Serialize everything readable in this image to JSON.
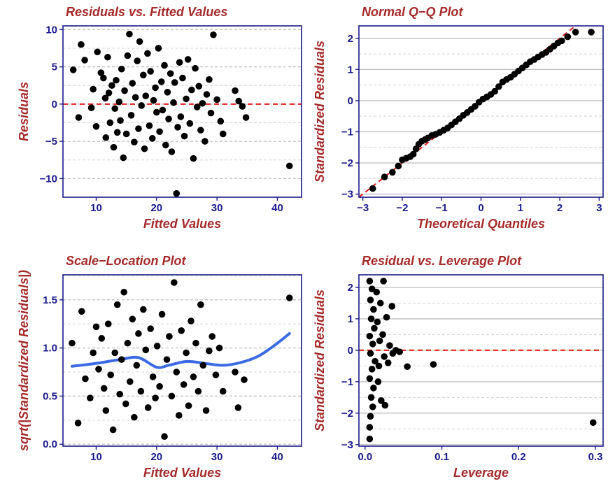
{
  "colors": {
    "title": "#a52a2a",
    "tick_text": "#1a1a8c",
    "frame": "#1a1a8c",
    "point": "#000000",
    "refline": "#e41a1c",
    "smooth": "#3b6be3",
    "grid_major": "#bebebe",
    "grid_minor": "#d3d3d3"
  },
  "chart_data": [
    {
      "type": "scatter",
      "title": "Residuals vs. Fitted Values",
      "xlabel": "Fitted Values",
      "ylabel": "Residuals",
      "xlim": [
        4.5,
        44
      ],
      "ylim": [
        -12.5,
        10.5
      ],
      "xticks": [
        10,
        20,
        30,
        40
      ],
      "yticks": [
        -10,
        -5,
        0,
        5,
        10
      ],
      "grid": "horizontal dashed",
      "reference_line": {
        "y": 0,
        "style": "dashed",
        "color": "red"
      },
      "points": [
        [
          6.2,
          4.6
        ],
        [
          7.1,
          -1.8
        ],
        [
          7.5,
          8.0
        ],
        [
          8.1,
          5.9
        ],
        [
          9.2,
          -0.5
        ],
        [
          9.5,
          2.0
        ],
        [
          10.0,
          -3.0
        ],
        [
          10.2,
          7.0
        ],
        [
          10.8,
          4.2
        ],
        [
          11.2,
          3.5
        ],
        [
          11.5,
          0.8
        ],
        [
          11.6,
          -4.5
        ],
        [
          11.9,
          6.3
        ],
        [
          12.1,
          1.5
        ],
        [
          12.3,
          -2.5
        ],
        [
          12.6,
          2.5
        ],
        [
          12.9,
          -5.8
        ],
        [
          13.1,
          -0.6
        ],
        [
          13.3,
          3.2
        ],
        [
          13.5,
          -3.8
        ],
        [
          13.8,
          0.3
        ],
        [
          14.0,
          -2.2
        ],
        [
          14.2,
          4.7
        ],
        [
          14.5,
          -7.2
        ],
        [
          14.7,
          1.8
        ],
        [
          15.0,
          -4.0
        ],
        [
          15.2,
          6.5
        ],
        [
          15.5,
          9.4
        ],
        [
          15.8,
          -1.5
        ],
        [
          16.0,
          2.8
        ],
        [
          16.3,
          -5.1
        ],
        [
          16.5,
          0.9
        ],
        [
          16.8,
          5.8
        ],
        [
          17.0,
          -3.3
        ],
        [
          17.2,
          8.4
        ],
        [
          17.5,
          -0.2
        ],
        [
          17.8,
          3.9
        ],
        [
          18.0,
          -6.0
        ],
        [
          18.2,
          1.1
        ],
        [
          18.5,
          6.8
        ],
        [
          18.8,
          -2.9
        ],
        [
          19.0,
          4.4
        ],
        [
          19.3,
          -4.6
        ],
        [
          19.5,
          0.5
        ],
        [
          19.8,
          2.2
        ],
        [
          20.0,
          -1.1
        ],
        [
          20.3,
          7.5
        ],
        [
          20.5,
          -3.7
        ],
        [
          20.8,
          3.0
        ],
        [
          21.0,
          -0.8
        ],
        [
          21.3,
          5.2
        ],
        [
          21.5,
          -5.5
        ],
        [
          21.8,
          1.6
        ],
        [
          22.0,
          -2.0
        ],
        [
          22.3,
          4.1
        ],
        [
          22.5,
          -6.4
        ],
        [
          22.8,
          0.2
        ],
        [
          23.0,
          2.9
        ],
        [
          23.3,
          -12.0
        ],
        [
          23.5,
          -3.1
        ],
        [
          23.8,
          5.6
        ],
        [
          24.0,
          -1.7
        ],
        [
          24.3,
          3.5
        ],
        [
          24.6,
          -4.3
        ],
        [
          24.9,
          0.7
        ],
        [
          25.2,
          6.0
        ],
        [
          25.5,
          -2.6
        ],
        [
          25.8,
          1.9
        ],
        [
          26.1,
          -7.3
        ],
        [
          26.4,
          4.8
        ],
        [
          26.7,
          -0.4
        ],
        [
          27.0,
          2.4
        ],
        [
          27.3,
          -3.5
        ],
        [
          27.6,
          0.1
        ],
        [
          28.0,
          -5.0
        ],
        [
          28.3,
          1.3
        ],
        [
          28.7,
          3.3
        ],
        [
          29.0,
          -1.2
        ],
        [
          29.4,
          9.3
        ],
        [
          30.0,
          0.6
        ],
        [
          30.6,
          -2.3
        ],
        [
          31.0,
          -4.0
        ],
        [
          33.0,
          1.8
        ],
        [
          33.6,
          0.4
        ],
        [
          34.2,
          -0.3
        ],
        [
          34.8,
          -1.8
        ],
        [
          42.0,
          -8.3
        ]
      ]
    },
    {
      "type": "scatter",
      "title": "Normal Q−Q Plot",
      "xlabel": "Theoretical Quantiles",
      "ylabel": "Standardized Residuals",
      "xlim": [
        -3.1,
        3.1
      ],
      "ylim": [
        -3.1,
        2.4
      ],
      "xticks": [
        -3,
        -2,
        -1,
        0,
        1,
        2,
        3
      ],
      "xtick_labels": [
        "−3",
        "−2",
        "−1",
        "0",
        "1",
        "2",
        "3"
      ],
      "yticks": [
        -3,
        -2,
        -1,
        0,
        1,
        2
      ],
      "ytick_labels": [
        "−3",
        "−2",
        "−1",
        "0",
        "1",
        "2"
      ],
      "grid": "horizontal",
      "reference_line": {
        "slope": 1,
        "intercept": 0,
        "style": "dashed",
        "color": "red"
      },
      "points": [
        [
          -2.75,
          -2.82
        ],
        [
          -2.45,
          -2.45
        ],
        [
          -2.25,
          -2.3
        ],
        [
          -2.1,
          -2.1
        ],
        [
          -2.0,
          -1.9
        ],
        [
          -1.9,
          -1.85
        ],
        [
          -1.8,
          -1.8
        ],
        [
          -1.72,
          -1.72
        ],
        [
          -1.65,
          -1.55
        ],
        [
          -1.58,
          -1.4
        ],
        [
          -1.5,
          -1.3
        ],
        [
          -1.42,
          -1.25
        ],
        [
          -1.35,
          -1.2
        ],
        [
          -1.25,
          -1.12
        ],
        [
          -1.15,
          -1.08
        ],
        [
          -1.05,
          -1.02
        ],
        [
          -0.95,
          -0.95
        ],
        [
          -0.85,
          -0.88
        ],
        [
          -0.75,
          -0.78
        ],
        [
          -0.65,
          -0.68
        ],
        [
          -0.55,
          -0.58
        ],
        [
          -0.45,
          -0.47
        ],
        [
          -0.35,
          -0.38
        ],
        [
          -0.25,
          -0.28
        ],
        [
          -0.15,
          -0.18
        ],
        [
          -0.05,
          -0.05
        ],
        [
          0.05,
          0.05
        ],
        [
          0.15,
          0.12
        ],
        [
          0.25,
          0.2
        ],
        [
          0.35,
          0.3
        ],
        [
          0.45,
          0.45
        ],
        [
          0.55,
          0.6
        ],
        [
          0.65,
          0.68
        ],
        [
          0.75,
          0.75
        ],
        [
          0.85,
          0.85
        ],
        [
          0.95,
          0.95
        ],
        [
          1.05,
          1.05
        ],
        [
          1.15,
          1.15
        ],
        [
          1.25,
          1.25
        ],
        [
          1.35,
          1.32
        ],
        [
          1.45,
          1.4
        ],
        [
          1.55,
          1.48
        ],
        [
          1.65,
          1.55
        ],
        [
          1.75,
          1.65
        ],
        [
          1.85,
          1.75
        ],
        [
          1.95,
          1.85
        ],
        [
          2.05,
          1.92
        ],
        [
          2.2,
          2.05
        ],
        [
          2.4,
          2.2
        ],
        [
          2.8,
          2.2
        ]
      ]
    },
    {
      "type": "scatter",
      "title": "Scale−Location Plot",
      "xlabel": "Fitted Values",
      "ylabel": "sqrt(|Standardized Residuals|)",
      "xlim": [
        4.5,
        44
      ],
      "ylim": [
        -0.02,
        1.76
      ],
      "xticks": [
        10,
        20,
        30,
        40
      ],
      "yticks": [
        0.0,
        0.5,
        1.0,
        1.5
      ],
      "ytick_labels": [
        "0.0",
        "0.5",
        "1.0",
        "1.5"
      ],
      "grid": "horizontal dashed",
      "smooth_curve": [
        [
          6,
          0.81
        ],
        [
          10,
          0.84
        ],
        [
          14,
          0.88
        ],
        [
          17,
          0.9
        ],
        [
          20,
          0.8
        ],
        [
          22,
          0.82
        ],
        [
          25,
          0.86
        ],
        [
          28,
          0.84
        ],
        [
          31,
          0.82
        ],
        [
          34,
          0.85
        ],
        [
          37,
          0.92
        ],
        [
          40,
          1.05
        ],
        [
          42,
          1.15
        ]
      ],
      "points": [
        [
          6.0,
          1.05
        ],
        [
          7.0,
          0.22
        ],
        [
          7.6,
          1.38
        ],
        [
          8.2,
          0.68
        ],
        [
          9.0,
          0.48
        ],
        [
          9.5,
          0.95
        ],
        [
          10.0,
          1.22
        ],
        [
          10.4,
          0.78
        ],
        [
          10.9,
          1.1
        ],
        [
          11.3,
          0.58
        ],
        [
          11.6,
          0.35
        ],
        [
          12.0,
          1.25
        ],
        [
          12.4,
          0.72
        ],
        [
          12.8,
          0.15
        ],
        [
          13.1,
          0.95
        ],
        [
          13.5,
          1.45
        ],
        [
          13.9,
          0.52
        ],
        [
          14.2,
          0.88
        ],
        [
          14.6,
          1.58
        ],
        [
          14.9,
          0.42
        ],
        [
          15.2,
          1.05
        ],
        [
          15.6,
          0.65
        ],
        [
          16.0,
          1.3
        ],
        [
          16.3,
          0.28
        ],
        [
          16.7,
          0.82
        ],
        [
          17.0,
          1.15
        ],
        [
          17.4,
          0.55
        ],
        [
          17.8,
          1.4
        ],
        [
          18.2,
          0.98
        ],
        [
          18.6,
          0.38
        ],
        [
          19.0,
          1.2
        ],
        [
          19.4,
          0.7
        ],
        [
          19.8,
          0.48
        ],
        [
          20.1,
          1.02
        ],
        [
          20.5,
          0.6
        ],
        [
          20.9,
          1.35
        ],
        [
          21.3,
          0.08
        ],
        [
          21.7,
          0.88
        ],
        [
          22.1,
          1.12
        ],
        [
          22.5,
          0.5
        ],
        [
          22.9,
          1.68
        ],
        [
          23.3,
          0.75
        ],
        [
          23.7,
          0.3
        ],
        [
          24.1,
          1.18
        ],
        [
          24.5,
          0.62
        ],
        [
          24.9,
          0.95
        ],
        [
          25.3,
          0.4
        ],
        [
          25.7,
          1.28
        ],
        [
          26.1,
          0.7
        ],
        [
          26.5,
          1.05
        ],
        [
          26.9,
          0.55
        ],
        [
          27.3,
          1.45
        ],
        [
          27.7,
          0.82
        ],
        [
          28.2,
          0.35
        ],
        [
          28.7,
          0.97
        ],
        [
          29.2,
          1.12
        ],
        [
          29.8,
          0.72
        ],
        [
          30.4,
          1.0
        ],
        [
          31.0,
          0.55
        ],
        [
          33.0,
          0.75
        ],
        [
          33.5,
          0.38
        ],
        [
          34.5,
          0.67
        ],
        [
          42.0,
          1.52
        ]
      ]
    },
    {
      "type": "scatter",
      "title": "Residual vs. Leverage Plot",
      "xlabel": "Leverage",
      "ylabel": "Standardized Residuals",
      "xlim": [
        -0.008,
        0.31
      ],
      "ylim": [
        -3.05,
        2.4
      ],
      "xticks": [
        0.0,
        0.1,
        0.2,
        0.3
      ],
      "xtick_labels": [
        "0.0",
        "0.1",
        "0.2",
        "0.3"
      ],
      "yticks": [
        -3,
        -2,
        -1,
        0,
        1,
        2
      ],
      "ytick_labels": [
        "−3",
        "−2",
        "−1",
        "0",
        "1",
        "2"
      ],
      "grid": "horizontal",
      "reference_line": {
        "y": 0,
        "style": "dashed",
        "color": "red"
      },
      "points": [
        [
          0.006,
          2.2
        ],
        [
          0.009,
          1.95
        ],
        [
          0.007,
          1.6
        ],
        [
          0.011,
          1.3
        ],
        [
          0.008,
          1.0
        ],
        [
          0.012,
          0.7
        ],
        [
          0.006,
          0.45
        ],
        [
          0.01,
          0.2
        ],
        [
          0.007,
          -0.1
        ],
        [
          0.013,
          -0.35
        ],
        [
          0.009,
          -0.6
        ],
        [
          0.006,
          -0.9
        ],
        [
          0.011,
          -1.2
        ],
        [
          0.008,
          -1.5
        ],
        [
          0.01,
          -1.8
        ],
        [
          0.007,
          -2.1
        ],
        [
          0.006,
          -2.45
        ],
        [
          0.006,
          -2.82
        ],
        [
          0.015,
          1.85
        ],
        [
          0.016,
          0.9
        ],
        [
          0.018,
          -0.5
        ],
        [
          0.017,
          -1.0
        ],
        [
          0.02,
          1.5
        ],
        [
          0.019,
          0.3
        ],
        [
          0.021,
          -1.6
        ],
        [
          0.024,
          2.2
        ],
        [
          0.023,
          0.5
        ],
        [
          0.025,
          -0.2
        ],
        [
          0.026,
          -1.75
        ],
        [
          0.028,
          1.05
        ],
        [
          0.03,
          -0.4
        ],
        [
          0.032,
          0.15
        ],
        [
          0.035,
          1.4
        ],
        [
          0.036,
          -0.1
        ],
        [
          0.04,
          0.0
        ],
        [
          0.045,
          -0.05
        ],
        [
          0.055,
          -0.52
        ],
        [
          0.089,
          -0.45
        ],
        [
          0.297,
          -2.3
        ]
      ]
    }
  ]
}
